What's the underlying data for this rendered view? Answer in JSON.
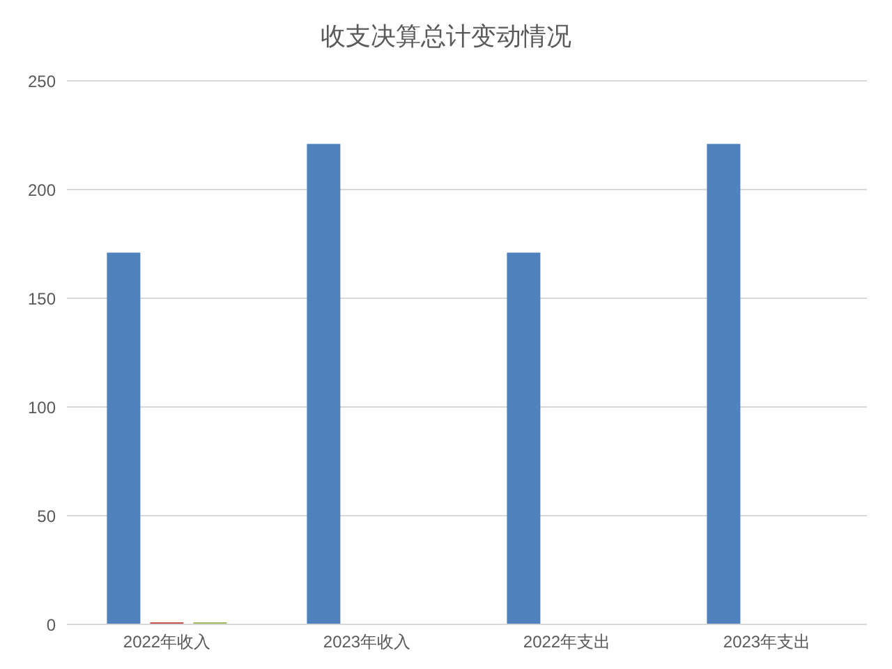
{
  "chart_data": {
    "type": "bar",
    "title": "收支决算总计变动情况",
    "categories": [
      "2022年收入",
      "2023年收入",
      "2022年支出",
      "2023年支出"
    ],
    "series": [
      {
        "color": "#4f81bd",
        "values": [
          171,
          221,
          171,
          221
        ]
      },
      {
        "color": "#c0504d",
        "values": [
          1,
          0,
          0,
          0
        ]
      },
      {
        "color": "#9bbb59",
        "values": [
          1,
          0,
          0,
          0
        ]
      }
    ],
    "ylim": [
      0,
      250
    ],
    "yticks": [
      0,
      50,
      100,
      150,
      200,
      250
    ],
    "grid": "y"
  }
}
